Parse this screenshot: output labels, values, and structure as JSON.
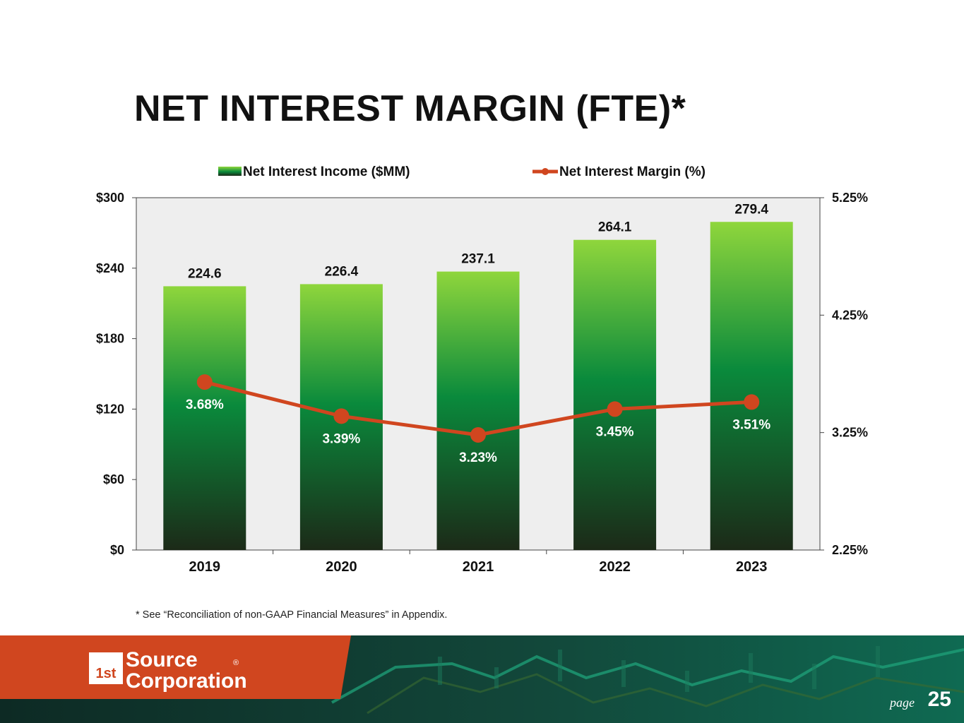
{
  "slide": {
    "title": "NET INTEREST MARGIN (FTE)*",
    "footnote": "* See “Reconciliation of non-GAAP Financial Measures” in Appendix.",
    "page_label": "page",
    "page_number": "25"
  },
  "logo": {
    "mark": "1st",
    "line1": "Source",
    "line2": "Corporation",
    "registered": "®"
  },
  "colors": {
    "bar_top": "#8fd63c",
    "bar_mid": "#0a8a3c",
    "bar_bottom": "#1c2a18",
    "line": "#d0461f",
    "footer_orange": "#d0461f",
    "footer_dark": "#0b2b22"
  },
  "chart_data": {
    "type": "bar+line",
    "categories": [
      "2019",
      "2020",
      "2021",
      "2022",
      "2023"
    ],
    "series": [
      {
        "name": "Net Interest Income ($MM)",
        "type": "bar",
        "axis": "left",
        "values": [
          224.6,
          226.4,
          237.1,
          264.1,
          279.4
        ],
        "labels": [
          "224.6",
          "226.4",
          "237.1",
          "264.1",
          "279.4"
        ]
      },
      {
        "name": "Net Interest Margin (%)",
        "type": "line",
        "axis": "right",
        "values": [
          3.68,
          3.39,
          3.23,
          3.45,
          3.51
        ],
        "labels": [
          "3.68%",
          "3.39%",
          "3.23%",
          "3.45%",
          "3.51%"
        ]
      }
    ],
    "left_axis": {
      "min": 0,
      "max": 300,
      "ticks": [
        0,
        60,
        120,
        180,
        240,
        300
      ],
      "tick_labels": [
        "$0",
        "$60",
        "$120",
        "$180",
        "$240",
        "$300"
      ]
    },
    "right_axis": {
      "min": 2.25,
      "max": 5.25,
      "ticks": [
        2.25,
        3.25,
        4.25,
        5.25
      ],
      "tick_labels": [
        "2.25%",
        "3.25%",
        "4.25%",
        "5.25%"
      ]
    },
    "legend_position": "top-center",
    "grid": false
  }
}
